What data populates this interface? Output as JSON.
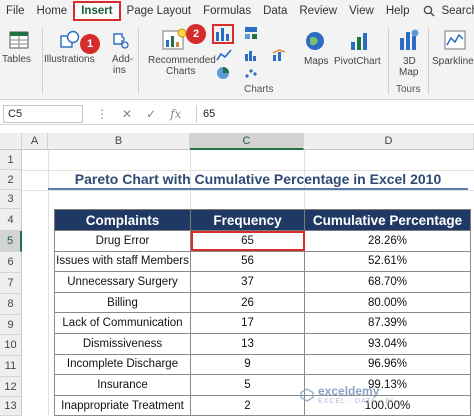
{
  "ribbon_tabs": [
    "File",
    "Home",
    "Insert",
    "Page Layout",
    "Formulas",
    "Data",
    "Review",
    "View",
    "Help"
  ],
  "active_tab": "Insert",
  "search_label": "Search",
  "ribbon": {
    "tables": "Tables",
    "illustrations": "Illustrations",
    "addins_1": "Add-",
    "addins_2": "ins",
    "recommended_1": "Recommended",
    "recommended_2": "Charts",
    "maps": "Maps",
    "pivotchart": "PivotChart",
    "map3d_1": "3D",
    "map3d_2": "Map",
    "sparklines": "Sparklines",
    "group_charts": "Charts",
    "group_tours": "Tours"
  },
  "badges": {
    "step1": "1",
    "step2": "2"
  },
  "formula_bar": {
    "name_box": "C5",
    "fx": "fx",
    "value": "65"
  },
  "columns": [
    "A",
    "B",
    "C",
    "D"
  ],
  "rows": [
    "1",
    "2",
    "3",
    "4",
    "5",
    "6",
    "7",
    "8",
    "9",
    "10",
    "11",
    "12",
    "13"
  ],
  "sheet": {
    "title": "Pareto Chart with Cumulative Percentage in Excel 2010",
    "headers": [
      "Complaints",
      "Frequency",
      "Cumulative Percentage"
    ],
    "rows": [
      [
        "Drug Error",
        "65",
        "28.26%"
      ],
      [
        "Issues with staff Members",
        "56",
        "52.61%"
      ],
      [
        "Unnecessary Surgery",
        "37",
        "68.70%"
      ],
      [
        "Billing",
        "26",
        "80.00%"
      ],
      [
        "Lack of Communication",
        "17",
        "87.39%"
      ],
      [
        "Dismissiveness",
        "13",
        "93.04%"
      ],
      [
        "Incomplete Discharge",
        "9",
        "96.96%"
      ],
      [
        "Insurance",
        "5",
        "99.13%"
      ],
      [
        "Inappropriate Treatment",
        "2",
        "100.00%"
      ]
    ]
  },
  "watermark": {
    "name": "exceldemy",
    "sub": "EXCEL · DATA · BI"
  },
  "colors": {
    "header_bg": "#1f3964",
    "accent_red": "#d62c2c",
    "excel_green": "#217346"
  }
}
